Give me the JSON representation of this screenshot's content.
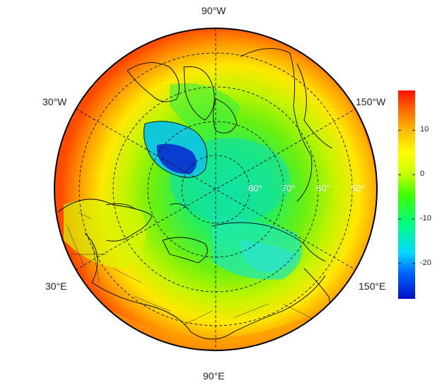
{
  "map": {
    "projection": "north-polar-stereographic",
    "longitude_labels": [
      {
        "key": "top",
        "text": "90°W"
      },
      {
        "key": "upper-left",
        "text": "30°W"
      },
      {
        "key": "upper-right",
        "text": "150°W"
      },
      {
        "key": "lower-left",
        "text": "30°E"
      },
      {
        "key": "lower-right",
        "text": "150°E"
      },
      {
        "key": "bottom",
        "text": "90°E"
      }
    ],
    "latitude_labels": [
      "80°",
      "70°",
      "60°",
      "50°"
    ],
    "colors": {
      "ocean_north_pole": "#19e0a0",
      "greenland_ice": "#0a3cd0",
      "coastline": "#000000",
      "graticule": "#000000",
      "outer_ring": "#d82a00"
    }
  },
  "colorbar": {
    "ticks": [
      "10",
      "0",
      "-10",
      "-20"
    ],
    "tick_values": [
      10,
      0,
      -10,
      -20
    ],
    "range": [
      -28,
      19
    ],
    "colors": [
      "#0010c8",
      "#0060ff",
      "#00d8ff",
      "#00ff80",
      "#40ff00",
      "#c8ff00",
      "#ffff00",
      "#ffc000",
      "#ff7000",
      "#ff1000"
    ]
  }
}
